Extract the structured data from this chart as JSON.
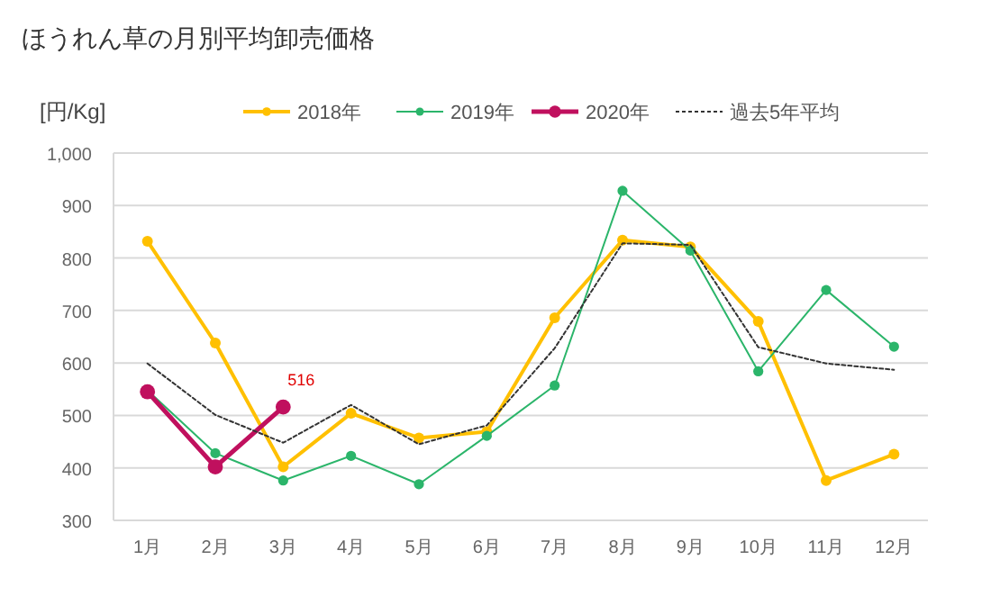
{
  "chart_data": {
    "type": "line",
    "title": "ほうれん草の月別平均卸売価格",
    "ylabel": "[円/Kg]",
    "categories": [
      "1月",
      "2月",
      "3月",
      "4月",
      "5月",
      "6月",
      "7月",
      "8月",
      "9月",
      "10月",
      "11月",
      "12月"
    ],
    "ylim": [
      300,
      1000
    ],
    "yticks": [
      300,
      400,
      500,
      600,
      700,
      800,
      900,
      {
        "value": 1000,
        "label": "1,000"
      }
    ],
    "grid": "y",
    "legend": "top",
    "series": [
      {
        "name": "2018年",
        "color": "#ffc000",
        "marker": "circle",
        "line_style": "solid",
        "values": [
          832,
          638,
          402,
          504,
          457,
          469,
          686,
          834,
          821,
          679,
          376,
          426
        ]
      },
      {
        "name": "2019年",
        "color": "#2bb56a",
        "marker": "circle",
        "line_style": "solid",
        "values": [
          548,
          428,
          376,
          423,
          369,
          461,
          557,
          928,
          814,
          584,
          739,
          631
        ]
      },
      {
        "name": "2020年",
        "color": "#c0105e",
        "marker": "circle",
        "line_style": "solid",
        "values": [
          545,
          402,
          516,
          null,
          null,
          null,
          null,
          null,
          null,
          null,
          null,
          null
        ],
        "value_labels": [
          null,
          null,
          "516",
          null,
          null,
          null,
          null,
          null,
          null,
          null,
          null,
          null
        ]
      },
      {
        "name": "過去5年平均",
        "color": "#333333",
        "marker": "none",
        "line_style": "dotted",
        "values": [
          599,
          501,
          448,
          520,
          445,
          481,
          628,
          828,
          825,
          630,
          599,
          587
        ]
      }
    ]
  }
}
